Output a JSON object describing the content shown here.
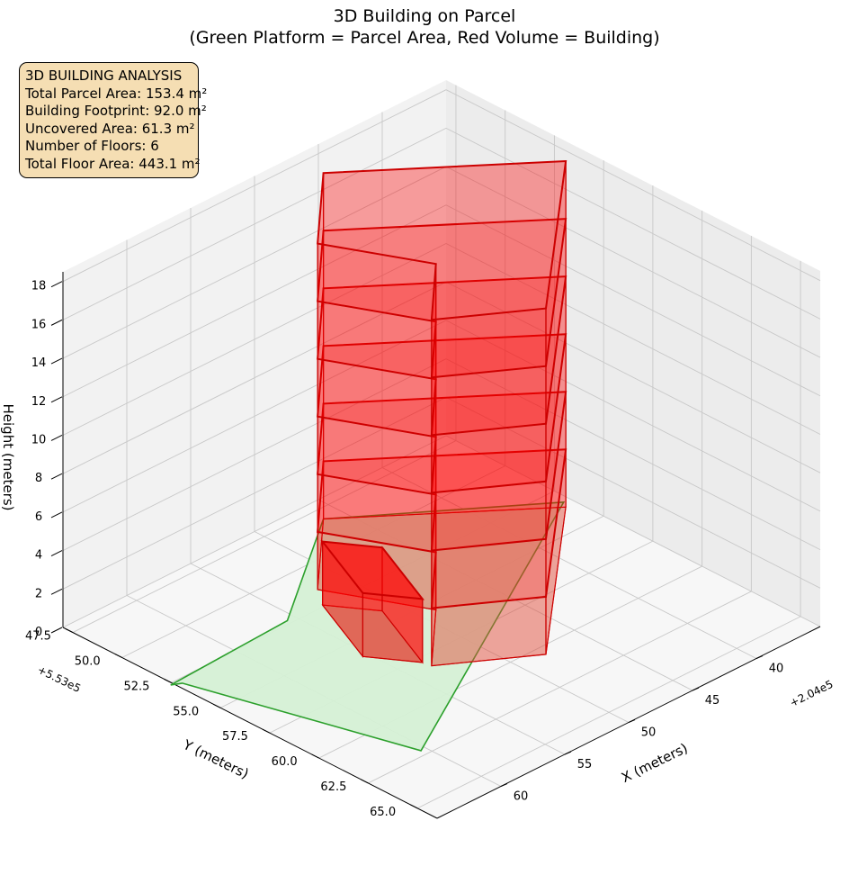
{
  "chart_data": {
    "type": "3d-polygons",
    "title": "3D Building on Parcel",
    "subtitle": "(Green Platform = Parcel Area, Red Volume = Building)",
    "axes": {
      "x": {
        "label": "X (meters)",
        "offset": "+2.04e5",
        "ticks": [
          40,
          45,
          50,
          55,
          60
        ],
        "range": [
          35,
          65
        ]
      },
      "y": {
        "label": "Y (meters)",
        "offset": "+5.53e5",
        "ticks": [
          "47.5",
          "50.0",
          "52.5",
          "55.0",
          "57.5",
          "60.0",
          "62.5",
          "65.0"
        ],
        "range": [
          47,
          66
        ]
      },
      "z": {
        "label": "Height (meters)",
        "ticks": [
          0,
          2,
          4,
          6,
          8,
          10,
          12,
          14,
          16,
          18
        ],
        "range": [
          0,
          18.5
        ]
      }
    },
    "grid": true,
    "parcel": {
      "color": "#2ca02c",
      "fill": "#d5f0d5",
      "outline": [
        [
          35.5,
          53.3
        ],
        [
          46.3,
          48.1
        ],
        [
          55.6,
          52.3
        ],
        [
          65.2,
          52.6
        ],
        [
          64.6,
          52.8
        ],
        [
          60.4,
          62.2
        ]
      ],
      "height": 0
    },
    "building": {
      "color": "#ff0000",
      "edge": "#cc0000",
      "floors": 6,
      "floor_height": 3,
      "total_height": 18,
      "footprint": [
        [
          35.8,
          53.6
        ],
        [
          46.3,
          48.1
        ],
        [
          52.0,
          51.5
        ],
        [
          48.9,
          55.5
        ],
        [
          53.4,
          58.2
        ],
        [
          48.0,
          60.5
        ]
      ],
      "annex": {
        "footprint": [
          [
            51.1,
            54.2
          ],
          [
            53.0,
            52.4
          ],
          [
            55.4,
            56.0
          ],
          [
            53.5,
            57.8
          ]
        ],
        "height": 3.3
      }
    }
  },
  "stats": {
    "heading": "3D BUILDING ANALYSIS",
    "parcel_area": "Total Parcel Area: 153.4 m²",
    "footprint": "Building Footprint: 92.0 m²",
    "uncovered": "Uncovered Area: 61.3 m²",
    "floors": "Number of Floors: 6",
    "floor_area": "Total Floor Area: 443.1 m²"
  },
  "colors": {
    "box_fill": "#f5deb3",
    "pane": "#f2f2f2",
    "grid": "#c8c8c8"
  }
}
